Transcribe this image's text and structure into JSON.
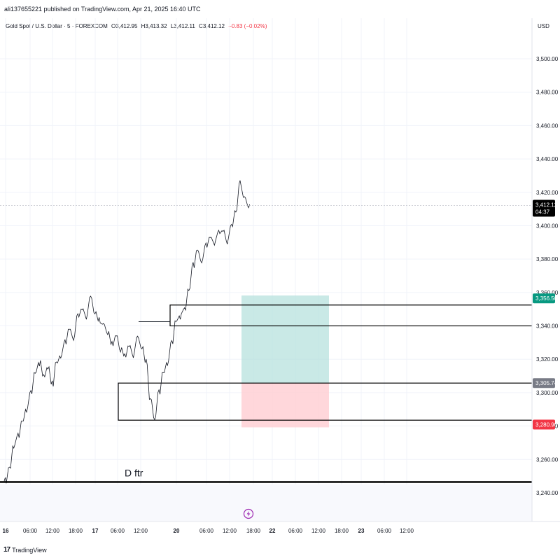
{
  "header": {
    "published_line": "ali137655221 published on TradingView.com, Apr 21, 2025 16:40 UTC"
  },
  "legend": {
    "symbol": "Gold Spot / U.S. Dollar · 5 · FOREXCOM",
    "open": "O3,412.95",
    "high": "H3,413.32",
    "low": "L3,412.11",
    "close": "C3,412.12",
    "change": "−0.83 (−0.02%)",
    "change_color": "#f23645"
  },
  "price_axis": {
    "currency": "USD",
    "ticks": [
      "3,500.00",
      "3,480.00",
      "3,460.00",
      "3,440.00",
      "3,420.00",
      "3,400.00",
      "3,380.00",
      "3,360.00",
      "3,340.00",
      "3,320.00",
      "3,300.00",
      "3,280.00",
      "3,260.00",
      "3,240.00"
    ],
    "last_price": {
      "label": "3,412.12",
      "countdown": "04:37",
      "color": "#000000"
    },
    "badges": [
      {
        "label": "3,356.50",
        "color": "#089981"
      },
      {
        "label": "3,305.74",
        "color": "#787b86"
      },
      {
        "label": "3,280.90",
        "color": "#f23645"
      }
    ]
  },
  "time_axis": {
    "ticks": [
      {
        "label": "16",
        "bold": true
      },
      {
        "label": "06:00",
        "bold": false
      },
      {
        "label": "12:00",
        "bold": false
      },
      {
        "label": "18:00",
        "bold": false
      },
      {
        "label": "17",
        "bold": true
      },
      {
        "label": "06:00",
        "bold": false
      },
      {
        "label": "12:00",
        "bold": false
      },
      {
        "label": "20",
        "bold": true
      },
      {
        "label": "06:00",
        "bold": false
      },
      {
        "label": "12:00",
        "bold": false
      },
      {
        "label": "18:00",
        "bold": false
      },
      {
        "label": "22",
        "bold": true
      },
      {
        "label": "06:00",
        "bold": false
      },
      {
        "label": "12:00",
        "bold": false
      },
      {
        "label": "18:00",
        "bold": false
      },
      {
        "label": "23",
        "bold": true
      },
      {
        "label": "06:00",
        "bold": false
      },
      {
        "label": "12:00",
        "bold": false
      }
    ]
  },
  "annotations": {
    "line_label": "D ftr"
  },
  "position_tool": {
    "entry": 3305.74,
    "target": 3356.5,
    "stop": 3280.9,
    "profit_color": "#b2dfdb",
    "loss_color": "#ffcdd2"
  },
  "zones": [
    {
      "name": "upper-zone",
      "top": 3352.5,
      "bottom": 3340.0
    },
    {
      "name": "lower-zone",
      "top": 3305.74,
      "bottom": 3283.5
    }
  ],
  "horizontal_line": {
    "price": 3246.5
  },
  "price_path": [
    [
      0,
      3247
    ],
    [
      1,
      3255
    ],
    [
      2,
      3268
    ],
    [
      3,
      3274
    ],
    [
      4,
      3283
    ],
    [
      5,
      3290
    ],
    [
      6,
      3300
    ],
    [
      7,
      3312
    ],
    [
      8,
      3318
    ],
    [
      9,
      3310
    ],
    [
      10,
      3315
    ],
    [
      11,
      3305
    ],
    [
      12,
      3318
    ],
    [
      13,
      3322
    ],
    [
      14,
      3330
    ],
    [
      15,
      3338
    ],
    [
      16,
      3333
    ],
    [
      17,
      3346
    ],
    [
      18,
      3350
    ],
    [
      19,
      3346
    ],
    [
      20,
      3357
    ],
    [
      21,
      3348
    ],
    [
      22,
      3343
    ],
    [
      23,
      3341
    ],
    [
      24,
      3336
    ],
    [
      25,
      3329
    ],
    [
      26,
      3334
    ],
    [
      27,
      3326
    ],
    [
      28,
      3322
    ],
    [
      29,
      3328
    ],
    [
      30,
      3323
    ],
    [
      31,
      3333
    ],
    [
      32,
      3327
    ],
    [
      33,
      3318
    ],
    [
      34,
      3296
    ],
    [
      35,
      3285
    ],
    [
      36,
      3300
    ],
    [
      37,
      3312
    ],
    [
      38,
      3318
    ],
    [
      39,
      3330
    ],
    [
      40,
      3343
    ],
    [
      41,
      3346
    ],
    [
      42,
      3350
    ],
    [
      43,
      3362
    ],
    [
      44,
      3376
    ],
    [
      45,
      3385
    ],
    [
      46,
      3379
    ],
    [
      47,
      3388
    ],
    [
      48,
      3393
    ],
    [
      49,
      3390
    ],
    [
      50,
      3396
    ],
    [
      51,
      3397
    ],
    [
      52,
      3391
    ],
    [
      53,
      3400
    ],
    [
      54,
      3409
    ],
    [
      55,
      3425
    ],
    [
      56,
      3417
    ],
    [
      57,
      3412
    ]
  ],
  "footer": {
    "brand": "TradingView"
  }
}
